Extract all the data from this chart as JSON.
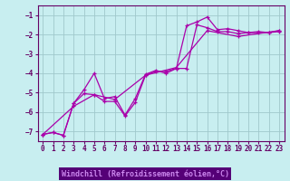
{
  "xlabel": "Windchill (Refroidissement éolien,°C)",
  "bg_color": "#c8eef0",
  "grid_color": "#a0c8cc",
  "line_color": "#aa00aa",
  "xlabel_bg": "#6600aa",
  "xlabel_fg": "#cc88ff",
  "xlim": [
    -0.5,
    23.5
  ],
  "ylim": [
    -7.5,
    -0.5
  ],
  "yticks": [
    -7,
    -6,
    -5,
    -4,
    -3,
    -2,
    -1
  ],
  "xticks": [
    0,
    1,
    2,
    3,
    4,
    5,
    6,
    7,
    8,
    9,
    10,
    11,
    12,
    13,
    14,
    15,
    16,
    17,
    18,
    19,
    20,
    21,
    22,
    23
  ],
  "line1_x": [
    0,
    1,
    2,
    3,
    4,
    5,
    6,
    7,
    8,
    9,
    10,
    11,
    12,
    13,
    14,
    15,
    16,
    17,
    18,
    19,
    20,
    21,
    22,
    23
  ],
  "line1_y": [
    -7.15,
    -7.05,
    -7.2,
    -5.55,
    -4.85,
    -4.0,
    -5.3,
    -5.2,
    -6.15,
    -5.3,
    -4.05,
    -3.85,
    -4.0,
    -3.75,
    -1.55,
    -1.35,
    -1.1,
    -1.75,
    -1.7,
    -1.8,
    -1.9,
    -1.85,
    -1.9,
    -1.8
  ],
  "line2_x": [
    0,
    1,
    2,
    3,
    4,
    5,
    6,
    7,
    8,
    9,
    10,
    11,
    12,
    13,
    14,
    15,
    16,
    17,
    18,
    19,
    20,
    21,
    22,
    23
  ],
  "line2_y": [
    -7.15,
    -7.05,
    -7.2,
    -5.55,
    -5.05,
    -5.1,
    -5.45,
    -5.45,
    -6.2,
    -5.5,
    -4.1,
    -3.9,
    -3.9,
    -3.75,
    -3.75,
    -1.5,
    -1.65,
    -1.85,
    -1.85,
    -1.95,
    -1.9,
    -1.9,
    -1.9,
    -1.85
  ],
  "line3_x": [
    0,
    3,
    5,
    7,
    10,
    13,
    16,
    19,
    23
  ],
  "line3_y": [
    -7.15,
    -5.7,
    -5.1,
    -5.35,
    -4.1,
    -3.7,
    -1.8,
    -2.1,
    -1.8
  ]
}
